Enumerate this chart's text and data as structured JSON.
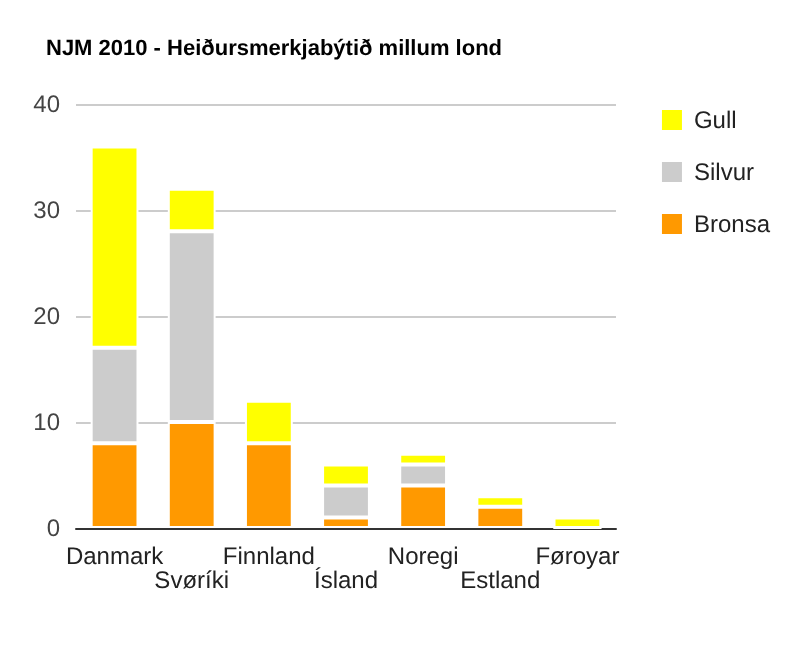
{
  "chart_data": {
    "type": "bar",
    "title": "NJM 2010 - Heiðursmerkjabýtið millum lond",
    "categories": [
      "Danmark",
      "Svøríki",
      "Finnland",
      "Ísland",
      "Noregi",
      "Estland",
      "Føroyar"
    ],
    "stacked": true,
    "series": [
      {
        "name": "Bronsa",
        "color": "#ff9900",
        "values": [
          8,
          10,
          8,
          1,
          4,
          2,
          0
        ]
      },
      {
        "name": "Silvur",
        "color": "#cccccc",
        "values": [
          9,
          18,
          0,
          3,
          2,
          0,
          0
        ]
      },
      {
        "name": "Gull",
        "color": "#ffff00",
        "values": [
          19,
          4,
          4,
          2,
          1,
          1,
          1
        ]
      }
    ],
    "ylim": [
      0,
      40
    ],
    "yticks": [
      0,
      10,
      20,
      30,
      40
    ],
    "grid": "y",
    "legend": "right"
  }
}
